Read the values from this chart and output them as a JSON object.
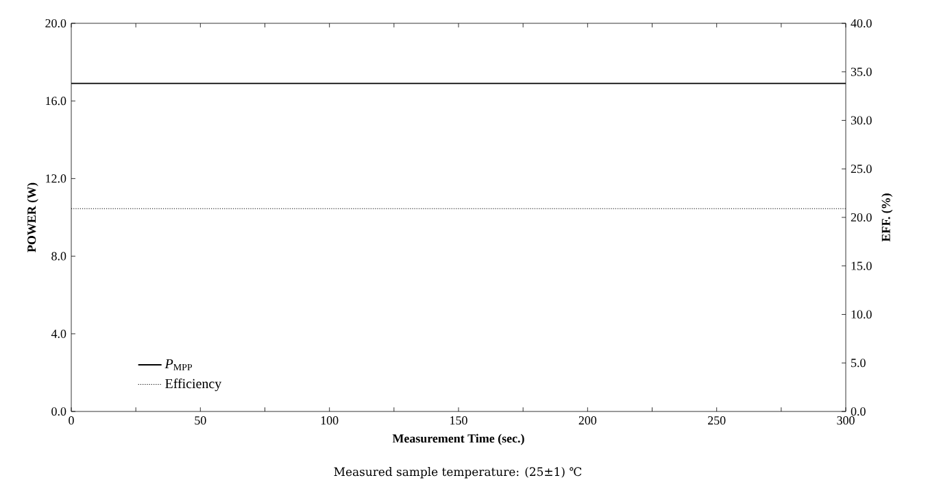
{
  "chart_data": {
    "type": "line",
    "xlabel": "Measurement Time (sec.)",
    "ylabel": "POWER (W)",
    "y2label": "EFF. (%)",
    "annotations": [
      "Measured sample temperature: (25±1) ℃"
    ],
    "x": [
      0,
      300
    ],
    "series": [
      {
        "name": "*P*$_{MPP}$",
        "color": "#000000",
        "values": [
          16.9,
          16.9
        ],
        "line_style": "solid"
      },
      {
        "name": "Efficiency",
        "color": "#000000",
        "values": [
          20.9,
          20.9
        ],
        "axis": "y2",
        "line_style": "dotted"
      }
    ],
    "xlim": [
      0,
      300
    ],
    "xticks": [
      0,
      {
        "value": 25,
        "label": null
      },
      50,
      {
        "value": 75,
        "label": null
      },
      100,
      {
        "value": 125,
        "label": null
      },
      150,
      {
        "value": 175,
        "label": null
      },
      200,
      {
        "value": 225,
        "label": null
      },
      250,
      {
        "value": 275,
        "label": null
      },
      300
    ],
    "ylim": [
      0,
      20
    ],
    "yticks": [
      {
        "value": 0,
        "label": "0.0"
      },
      {
        "value": 4,
        "label": "4.0"
      },
      {
        "value": 8,
        "label": "8.0"
      },
      {
        "value": 12,
        "label": "12.0"
      },
      {
        "value": 16,
        "label": "16.0"
      },
      {
        "value": 20,
        "label": "20.0"
      }
    ],
    "y2lim": [
      0,
      40
    ],
    "y2ticks": [
      {
        "value": 0,
        "label": "0.0"
      },
      {
        "value": 5,
        "label": "5.0"
      },
      {
        "value": 10,
        "label": "10.0"
      },
      {
        "value": 15,
        "label": "15.0"
      },
      {
        "value": 20,
        "label": "20.0"
      },
      {
        "value": 25,
        "label": "25.0"
      },
      {
        "value": 30,
        "label": "30.0"
      },
      {
        "value": 35,
        "label": "35.0"
      },
      {
        "value": 40,
        "label": "40.0"
      }
    ],
    "grid": false,
    "legend": "bottom left",
    "marker": "none"
  }
}
